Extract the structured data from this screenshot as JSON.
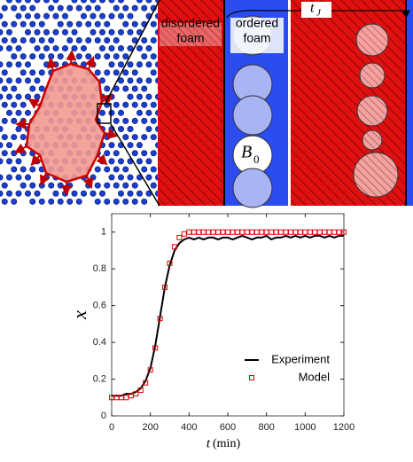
{
  "illustration": {
    "disordered": [
      "disordered",
      "foam"
    ],
    "ordered": [
      "ordered",
      "foam"
    ],
    "bubble": {
      "main": "B",
      "sub": "0"
    },
    "time": {
      "main": "t",
      "sub": "J"
    }
  },
  "chart_data": {
    "type": "line",
    "x_label": {
      "symbol": "t",
      "unit": "(min)"
    },
    "y_label": "x",
    "xlim": [
      0,
      1200
    ],
    "xticks": [
      0,
      200,
      400,
      600,
      800,
      1000,
      1200
    ],
    "ylim": [
      0,
      1.1
    ],
    "yticks": [
      0,
      0.2,
      0.4,
      0.6,
      0.8,
      1
    ],
    "legend": "lower right",
    "x": [
      0,
      25,
      50,
      75,
      100,
      125,
      150,
      175,
      200,
      225,
      250,
      275,
      300,
      325,
      350,
      375,
      400,
      425,
      450,
      475,
      500,
      525,
      550,
      575,
      600,
      625,
      650,
      675,
      700,
      725,
      750,
      775,
      800,
      825,
      850,
      875,
      900,
      925,
      950,
      975,
      1000,
      1025,
      1050,
      1075,
      1100,
      1125,
      1150,
      1175,
      1200
    ],
    "series": [
      {
        "name": "Experiment",
        "color": "#000000",
        "style": "line",
        "values": [
          0.11,
          0.11,
          0.11,
          0.12,
          0.12,
          0.13,
          0.15,
          0.19,
          0.26,
          0.38,
          0.54,
          0.7,
          0.82,
          0.9,
          0.94,
          0.96,
          0.97,
          0.96,
          0.97,
          0.96,
          0.97,
          0.97,
          0.96,
          0.97,
          0.97,
          0.96,
          0.97,
          0.98,
          0.97,
          0.96,
          0.97,
          0.97,
          0.98,
          0.96,
          0.97,
          0.97,
          0.98,
          0.97,
          0.98,
          0.97,
          0.98,
          0.97,
          0.98,
          0.98,
          0.97,
          0.98,
          0.97,
          0.98,
          0.98
        ]
      },
      {
        "name": "Model",
        "color": "#e00000",
        "style": "square",
        "values": [
          0.1,
          0.1,
          0.1,
          0.1,
          0.11,
          0.12,
          0.14,
          0.18,
          0.25,
          0.37,
          0.53,
          0.7,
          0.83,
          0.92,
          0.97,
          0.99,
          1.0,
          1.0,
          1.0,
          1.0,
          1.0,
          1.0,
          1.0,
          1.0,
          1.0,
          1.0,
          1.0,
          1.0,
          1.0,
          1.0,
          1.0,
          1.0,
          1.0,
          1.0,
          1.0,
          1.0,
          1.0,
          1.0,
          1.0,
          1.0,
          1.0,
          1.0,
          1.0,
          1.0,
          1.0,
          1.0,
          1.0,
          1.0,
          1.0
        ]
      }
    ]
  }
}
